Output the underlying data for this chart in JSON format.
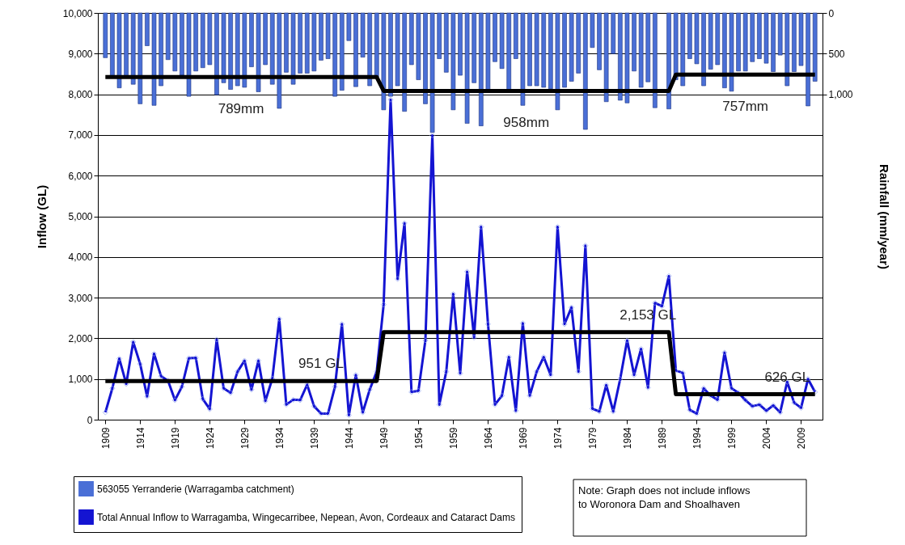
{
  "chart_data": {
    "type": "line",
    "ylabel": "Inflow (GL)",
    "y2label": "Rainfall (mm/year)",
    "x": [
      1909,
      1910,
      1911,
      1912,
      1913,
      1914,
      1915,
      1916,
      1917,
      1918,
      1919,
      1920,
      1921,
      1922,
      1923,
      1924,
      1925,
      1926,
      1927,
      1928,
      1929,
      1930,
      1931,
      1932,
      1933,
      1934,
      1935,
      1936,
      1937,
      1938,
      1939,
      1940,
      1941,
      1942,
      1943,
      1944,
      1945,
      1946,
      1947,
      1948,
      1949,
      1950,
      1951,
      1952,
      1953,
      1954,
      1955,
      1956,
      1957,
      1958,
      1959,
      1960,
      1961,
      1962,
      1963,
      1964,
      1965,
      1966,
      1967,
      1968,
      1969,
      1970,
      1971,
      1972,
      1973,
      1974,
      1975,
      1976,
      1977,
      1978,
      1979,
      1980,
      1981,
      1982,
      1983,
      1984,
      1985,
      1986,
      1987,
      1988,
      1989,
      1990,
      1991,
      1992,
      1993,
      1994,
      1995,
      1996,
      1997,
      1998,
      1999,
      2000,
      2001,
      2002,
      2003,
      2004,
      2005,
      2006,
      2007,
      2008,
      2009,
      2010,
      2011
    ],
    "series": [
      {
        "name": "563055 Yerranderie (Warragamba catchment)",
        "type": "bar",
        "axis": "y2",
        "color": "#4a6fd6",
        "values": [
          550,
          785,
          921,
          785,
          877,
          1117,
          403,
          1136,
          895,
          574,
          714,
          766,
          1025,
          714,
          673,
          636,
          1006,
          858,
          940,
          895,
          914,
          662,
          969,
          636,
          877,
          1173,
          729,
          877,
          740,
          740,
          714,
          581,
          562,
          1025,
          951,
          340,
          906,
          544,
          895,
          784,
          1191,
          1025,
          895,
          1210,
          636,
          821,
          1117,
          1469,
          562,
          729,
          1191,
          766,
          1358,
          858,
          1388,
          951,
          599,
          684,
          951,
          562,
          1136,
          895,
          895,
          914,
          932,
          1191,
          914,
          840,
          740,
          1432,
          425,
          699,
          1091,
          500,
          1073,
          1106,
          714,
          914,
          847,
          1165,
          null,
          1180,
          821,
          895,
          562,
          625,
          895,
          692,
          636,
          921,
          962,
          714,
          714,
          599,
          562,
          618,
          721,
          518,
          895,
          721,
          647,
          1143,
          840
        ]
      },
      {
        "name": "Total Annual Inflow to Warragamba, Wingecarribee, Nepean, Avon, Cordeaux and Cataract Dams",
        "color": "#1414d2",
        "marker": "diamond",
        "values": [
          180,
          770,
          1500,
          880,
          1910,
          1370,
          570,
          1620,
          1070,
          960,
          480,
          810,
          1510,
          1520,
          510,
          260,
          1970,
          770,
          660,
          1180,
          1450,
          740,
          1450,
          460,
          1010,
          2480,
          370,
          490,
          480,
          860,
          330,
          150,
          150,
          810,
          2350,
          110,
          1100,
          180,
          740,
          1180,
          2830,
          7870,
          3460,
          4830,
          680,
          710,
          1950,
          6990,
          370,
          1180,
          3090,
          1140,
          3640,
          2020,
          4740,
          2350,
          370,
          590,
          1540,
          220,
          2370,
          590,
          1180,
          1540,
          1100,
          4740,
          2350,
          2760,
          1180,
          4280,
          270,
          200,
          850,
          200,
          1000,
          1950,
          1100,
          1740,
          790,
          2870,
          2790,
          3530,
          1210,
          1150,
          240,
          150,
          770,
          590,
          490,
          1650,
          770,
          660,
          480,
          330,
          370,
          220,
          350,
          180,
          930,
          420,
          290,
          1000,
          680
        ]
      },
      {
        "color": "#000000",
        "x": [
          1909,
          1948,
          1949,
          1990,
          1991,
          2011
        ],
        "values": [
          951,
          951,
          2153,
          2153,
          626,
          626
        ]
      },
      {
        "axis": "y2",
        "color": "#000000",
        "x": [
          1909,
          1948,
          1949,
          1990,
          1991,
          2011
        ],
        "values": [
          789,
          789,
          958,
          958,
          757,
          757
        ]
      }
    ],
    "xlim": [
      1908.5,
      2011.5
    ],
    "xticks": [
      1909,
      1914,
      1919,
      1924,
      1929,
      1934,
      1939,
      1944,
      1949,
      1954,
      1959,
      1964,
      1969,
      1974,
      1979,
      1984,
      1989,
      1994,
      1999,
      2004,
      2009
    ],
    "ylim": [
      0,
      10000
    ],
    "yticks": [
      0,
      {
        "value": 1000,
        "label": "1,000"
      },
      {
        "value": 2000,
        "label": "2,000"
      },
      {
        "value": 3000,
        "label": "3,000"
      },
      {
        "value": 4000,
        "label": "4,000"
      },
      {
        "value": 5000,
        "label": "5,000"
      },
      {
        "value": 6000,
        "label": "6,000"
      },
      {
        "value": 7000,
        "label": "7,000"
      },
      {
        "value": 8000,
        "label": "8,000"
      },
      {
        "value": 9000,
        "label": "9,000"
      },
      {
        "value": 10000,
        "label": "10,000"
      }
    ],
    "y2lim": [
      5000,
      0
    ],
    "y2ticks": [
      0,
      500,
      {
        "value": 1000,
        "label": "1,000"
      }
    ],
    "grid": "y",
    "legend": "bottom left",
    "annotations": [
      "789mm",
      "958mm",
      "757mm",
      {
        "text": "951 GL",
        "x": 1940,
        "y": 951
      },
      {
        "text": "2,153 GL",
        "x": 1987,
        "y": 2153
      },
      {
        "text": "626 GL",
        "x": 2007,
        "y": 626
      },
      "Note: Graph does not include inflows to Woronora Dam and Shoalhaven"
    ]
  }
}
